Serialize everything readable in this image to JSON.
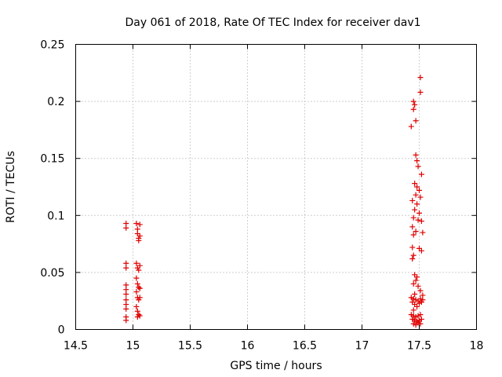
{
  "chart_data": {
    "type": "scatter",
    "title": "Day 061 of 2018, Rate Of TEC Index for receiver dav1",
    "xlabel": "GPS time / hours",
    "ylabel": "ROTI / TECUs",
    "xlim": [
      14.5,
      18
    ],
    "ylim": [
      0,
      0.25
    ],
    "xticks": [
      14.5,
      15,
      15.5,
      16,
      16.5,
      17,
      17.5,
      18
    ],
    "xtick_labels": [
      "14.5",
      "15",
      "15.5",
      "16",
      "16.5",
      "17",
      "17.5",
      "18"
    ],
    "yticks": [
      0,
      0.05,
      0.1,
      0.15,
      0.2,
      0.25
    ],
    "ytick_labels": [
      "0",
      "0.05",
      "0.1",
      "0.15",
      "0.2",
      "0.25"
    ],
    "grid": true,
    "marker": "+",
    "color": "#e00000",
    "series": [
      {
        "name": "ROTI",
        "points": [
          [
            14.94,
            0.093
          ],
          [
            14.94,
            0.089
          ],
          [
            14.94,
            0.058
          ],
          [
            14.94,
            0.054
          ],
          [
            14.94,
            0.039
          ],
          [
            14.94,
            0.035
          ],
          [
            14.94,
            0.031
          ],
          [
            14.94,
            0.026
          ],
          [
            14.94,
            0.022
          ],
          [
            14.94,
            0.018
          ],
          [
            14.94,
            0.011
          ],
          [
            14.94,
            0.008
          ],
          [
            15.03,
            0.093
          ],
          [
            15.04,
            0.088
          ],
          [
            15.04,
            0.084
          ],
          [
            15.05,
            0.08
          ],
          [
            15.05,
            0.078
          ],
          [
            15.03,
            0.058
          ],
          [
            15.04,
            0.054
          ],
          [
            15.05,
            0.052
          ],
          [
            15.03,
            0.045
          ],
          [
            15.04,
            0.04
          ],
          [
            15.05,
            0.037
          ],
          [
            15.03,
            0.033
          ],
          [
            15.04,
            0.028
          ],
          [
            15.05,
            0.026
          ],
          [
            15.03,
            0.02
          ],
          [
            15.04,
            0.016
          ],
          [
            15.05,
            0.013
          ],
          [
            15.04,
            0.011
          ],
          [
            15.06,
            0.092
          ],
          [
            15.06,
            0.082
          ],
          [
            15.06,
            0.056
          ],
          [
            15.06,
            0.036
          ],
          [
            15.06,
            0.028
          ],
          [
            15.06,
            0.012
          ],
          [
            17.51,
            0.221
          ],
          [
            17.51,
            0.208
          ],
          [
            17.45,
            0.2
          ],
          [
            17.46,
            0.197
          ],
          [
            17.45,
            0.193
          ],
          [
            17.47,
            0.183
          ],
          [
            17.43,
            0.178
          ],
          [
            17.47,
            0.153
          ],
          [
            17.48,
            0.148
          ],
          [
            17.49,
            0.143
          ],
          [
            17.52,
            0.136
          ],
          [
            17.46,
            0.128
          ],
          [
            17.48,
            0.125
          ],
          [
            17.5,
            0.122
          ],
          [
            17.47,
            0.118
          ],
          [
            17.51,
            0.116
          ],
          [
            17.44,
            0.113
          ],
          [
            17.48,
            0.11
          ],
          [
            17.46,
            0.105
          ],
          [
            17.5,
            0.102
          ],
          [
            17.45,
            0.098
          ],
          [
            17.49,
            0.096
          ],
          [
            17.52,
            0.095
          ],
          [
            17.44,
            0.09
          ],
          [
            17.47,
            0.086
          ],
          [
            17.45,
            0.083
          ],
          [
            17.53,
            0.085
          ],
          [
            17.44,
            0.072
          ],
          [
            17.5,
            0.071
          ],
          [
            17.52,
            0.069
          ],
          [
            17.45,
            0.065
          ],
          [
            17.44,
            0.062
          ],
          [
            17.46,
            0.048
          ],
          [
            17.48,
            0.046
          ],
          [
            17.47,
            0.043
          ],
          [
            17.45,
            0.04
          ],
          [
            17.49,
            0.038
          ],
          [
            17.51,
            0.034
          ],
          [
            17.46,
            0.031
          ],
          [
            17.53,
            0.03
          ],
          [
            17.43,
            0.028
          ],
          [
            17.45,
            0.027
          ],
          [
            17.47,
            0.026
          ],
          [
            17.49,
            0.025
          ],
          [
            17.51,
            0.027
          ],
          [
            17.53,
            0.026
          ],
          [
            17.44,
            0.024
          ],
          [
            17.46,
            0.022
          ],
          [
            17.5,
            0.023
          ],
          [
            17.52,
            0.024
          ],
          [
            17.48,
            0.02
          ],
          [
            17.45,
            0.017
          ],
          [
            17.43,
            0.013
          ],
          [
            17.45,
            0.012
          ],
          [
            17.47,
            0.011
          ],
          [
            17.49,
            0.012
          ],
          [
            17.51,
            0.013
          ],
          [
            17.44,
            0.009
          ],
          [
            17.46,
            0.008
          ],
          [
            17.48,
            0.007
          ],
          [
            17.5,
            0.008
          ],
          [
            17.52,
            0.009
          ],
          [
            17.45,
            0.005
          ],
          [
            17.47,
            0.004
          ],
          [
            17.49,
            0.006
          ],
          [
            17.51,
            0.005
          ]
        ]
      }
    ]
  }
}
